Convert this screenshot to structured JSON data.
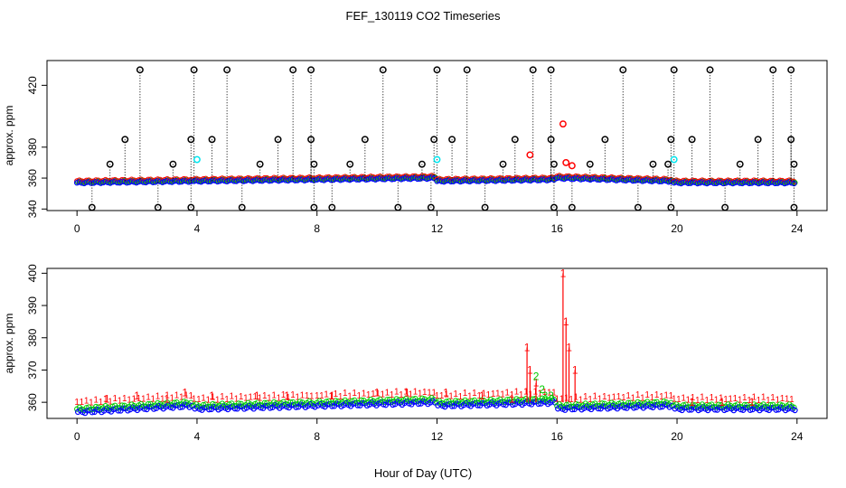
{
  "title": "FEF_130119  CO2 Timeseries",
  "xlabel": "Hour of Day (UTC)",
  "colors": {
    "black": "#000000",
    "red": "#ff0000",
    "green": "#00cc00",
    "blue": "#0000ff",
    "cyan": "#00e5ee"
  },
  "chart_data": [
    {
      "type": "scatter",
      "title": "",
      "xlabel": "",
      "ylabel": "approx. ppm",
      "xlim": [
        -1,
        25
      ],
      "ylim": [
        339,
        436
      ],
      "xticks": [
        0,
        4,
        8,
        12,
        16,
        20,
        24
      ],
      "xtick_labels": [
        "0",
        "4",
        "8",
        "12",
        "16",
        "20",
        "24"
      ],
      "yticks": [
        340,
        360,
        380,
        420
      ],
      "ytick_labels": [
        "340",
        "360",
        "380",
        "420"
      ],
      "series": [
        {
          "name": "black high outliers",
          "marker": "circle",
          "color": "#000000",
          "x": [
            2.1,
            3.9,
            5.0,
            7.2,
            7.8,
            10.2,
            12.0,
            13.0,
            15.2,
            15.8,
            18.2,
            19.9,
            21.1,
            23.2,
            23.8
          ],
          "y": [
            430,
            430,
            430,
            430,
            430,
            430,
            430,
            430,
            430,
            430,
            430,
            430,
            430,
            430,
            430
          ]
        },
        {
          "name": "black mid outliers",
          "marker": "circle",
          "color": "#000000",
          "x": [
            1.6,
            3.8,
            4.5,
            6.7,
            7.8,
            9.6,
            11.9,
            12.5,
            14.6,
            15.8,
            17.6,
            19.8,
            20.5,
            22.7,
            23.8
          ],
          "y": [
            385,
            385,
            385,
            385,
            385,
            385,
            385,
            385,
            385,
            385,
            385,
            385,
            385,
            385,
            385
          ]
        },
        {
          "name": "black low outliers",
          "marker": "circle",
          "color": "#000000",
          "x": [
            0.5,
            2.7,
            3.8,
            5.5,
            7.9,
            8.5,
            10.7,
            11.8,
            13.6,
            15.9,
            16.5,
            18.7,
            19.8,
            21.6,
            23.9
          ],
          "y": [
            341,
            341,
            341,
            341,
            341,
            341,
            341,
            341,
            341,
            341,
            341,
            341,
            341,
            341,
            341
          ]
        },
        {
          "name": "black 370 outliers",
          "marker": "circle",
          "color": "#000000",
          "x": [
            1.1,
            3.2,
            6.1,
            7.9,
            9.1,
            11.5,
            14.2,
            15.9,
            17.1,
            19.2,
            19.7,
            22.1,
            23.9
          ],
          "y": [
            369,
            369,
            369,
            369,
            369,
            369,
            369,
            369,
            369,
            369,
            369,
            369,
            369
          ]
        },
        {
          "name": "cyan",
          "marker": "circle",
          "color": "#00e5ee",
          "x": [
            4.0,
            12.0,
            19.9
          ],
          "y": [
            372,
            372,
            372
          ]
        },
        {
          "name": "red",
          "marker": "circle",
          "color": "#ff0000",
          "x": [
            15.1,
            16.2,
            16.3,
            16.5
          ],
          "y": [
            375,
            395,
            370,
            368
          ]
        }
      ],
      "baseline_segments": [
        {
          "x_start": 0.0,
          "x_end": 3.8,
          "y_start": 357,
          "y_end": 358
        },
        {
          "x_start": 3.9,
          "x_end": 7.9,
          "y_start": 358,
          "y_end": 359
        },
        {
          "x_start": 8.0,
          "x_end": 11.9,
          "y_start": 359,
          "y_end": 360
        },
        {
          "x_start": 12.0,
          "x_end": 15.9,
          "y_start": 358,
          "y_end": 359
        },
        {
          "x_start": 16.0,
          "x_end": 19.8,
          "y_start": 360,
          "y_end": 358
        },
        {
          "x_start": 19.9,
          "x_end": 23.9,
          "y_start": 357,
          "y_end": 357
        }
      ]
    },
    {
      "type": "scatter",
      "title": "",
      "xlabel": "Hour of Day (UTC)",
      "ylabel": "approx. ppm",
      "xlim": [
        -1,
        25
      ],
      "ylim": [
        355,
        401.5
      ],
      "xticks": [
        0,
        4,
        8,
        12,
        16,
        20,
        24
      ],
      "xtick_labels": [
        "0",
        "4",
        "8",
        "12",
        "16",
        "20",
        "24"
      ],
      "yticks": [
        360,
        370,
        380,
        390,
        400
      ],
      "ytick_labels": [
        "360",
        "370",
        "380",
        "390",
        "400"
      ],
      "series": [
        {
          "name": "1 (red)",
          "marker": "1",
          "color": "#ff0000",
          "x": [
            1.0,
            2.0,
            3.0,
            3.6,
            4.5,
            6.0,
            7.0,
            8.5,
            10.0,
            11.0,
            12.3,
            13.5,
            14.5,
            15.0,
            15.1,
            15.3,
            16.2,
            16.3,
            16.4,
            16.6,
            20.5,
            21.5,
            22.5
          ],
          "y": [
            361,
            362,
            361,
            363,
            362,
            362,
            362,
            362,
            363,
            363,
            363,
            362,
            361,
            377,
            370,
            366,
            400,
            385,
            377,
            370,
            360,
            360,
            360
          ]
        },
        {
          "name": "2 (green)",
          "marker": "2",
          "color": "#00cc00",
          "x": [
            15.3,
            15.5
          ],
          "y": [
            368,
            364
          ]
        },
        {
          "name": "3 (green)",
          "marker": "3",
          "color": "#00cc00",
          "x": [
            15.6,
            15.8
          ],
          "y": [
            362,
            362
          ]
        }
      ],
      "baseline_segments": [
        {
          "x_start": 0.0,
          "x_end": 3.8,
          "y_start": 357,
          "y_end": 359
        },
        {
          "x_start": 3.9,
          "x_end": 7.9,
          "y_start": 358,
          "y_end": 359
        },
        {
          "x_start": 8.0,
          "x_end": 11.9,
          "y_start": 359,
          "y_end": 360
        },
        {
          "x_start": 12.0,
          "x_end": 15.9,
          "y_start": 359,
          "y_end": 360
        },
        {
          "x_start": 16.0,
          "x_end": 19.8,
          "y_start": 358,
          "y_end": 359
        },
        {
          "x_start": 19.9,
          "x_end": 23.9,
          "y_start": 358,
          "y_end": 358
        }
      ]
    }
  ]
}
